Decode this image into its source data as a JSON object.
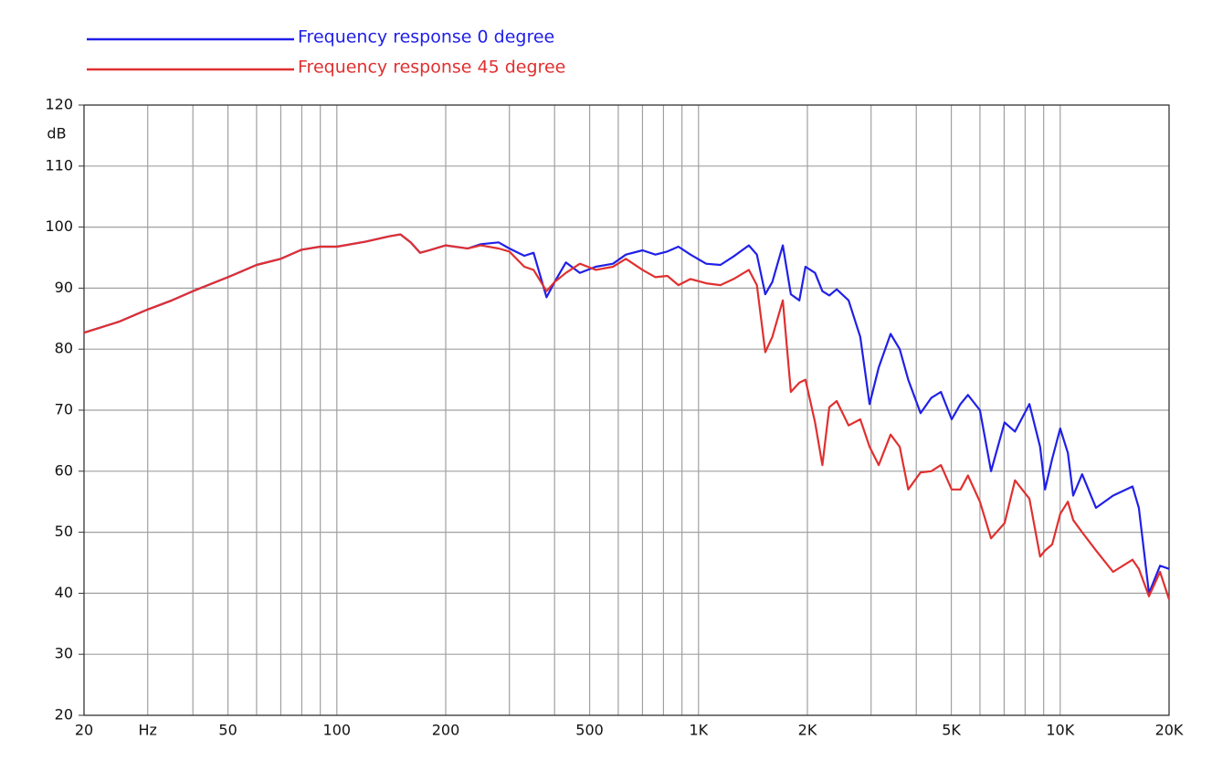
{
  "chart_data": {
    "type": "line",
    "y_label": "dB",
    "x_scale": "log",
    "grid": true,
    "xlim": [
      20,
      20000
    ],
    "ylim": [
      20,
      120
    ],
    "yticks": [
      20,
      30,
      40,
      50,
      60,
      70,
      80,
      90,
      100,
      110,
      120
    ],
    "xticks": [
      20,
      {
        "value": 30,
        "label": "Hz"
      },
      50,
      100,
      200,
      500,
      {
        "value": 1000,
        "label": "1K"
      },
      {
        "value": 2000,
        "label": "2K"
      },
      {
        "value": 5000,
        "label": "5K"
      },
      {
        "value": 10000,
        "label": "10K"
      },
      {
        "value": 20000,
        "label": "20K"
      }
    ],
    "xminor": [
      40,
      60,
      70,
      80,
      90,
      300,
      400,
      600,
      700,
      800,
      900,
      3000,
      4000,
      6000,
      7000,
      8000,
      9000
    ],
    "x": [
      20,
      25,
      30,
      35,
      40,
      50,
      60,
      70,
      80,
      90,
      100,
      120,
      140,
      150,
      160,
      170,
      180,
      200,
      230,
      250,
      280,
      300,
      330,
      350,
      380,
      400,
      430,
      470,
      520,
      580,
      630,
      700,
      760,
      820,
      880,
      950,
      1050,
      1150,
      1250,
      1378,
      1450,
      1530,
      1600,
      1710,
      1800,
      1900,
      1976,
      2100,
      2200,
      2300,
      2410,
      2600,
      2800,
      2972,
      3150,
      3396,
      3600,
      3800,
      4110,
      4400,
      4680,
      5012,
      5300,
      5560,
      6000,
      6440,
      7020,
      7500,
      8220,
      8800,
      9080,
      9500,
      10000,
      10500,
      10860,
      11500,
      12560,
      14000,
      15850,
      16500,
      17600,
      18880,
      20000
    ],
    "series": [
      {
        "name": "Frequency response 0 degree",
        "color": "#2020e8",
        "values": [
          82.7,
          84.5,
          86.5,
          88,
          89.5,
          91.8,
          93.8,
          94.8,
          96.3,
          96.8,
          96.8,
          97.6,
          98.5,
          98.8,
          97.5,
          95.8,
          96.2,
          97,
          96.5,
          97.2,
          97.5,
          96.5,
          95.3,
          95.8,
          88.5,
          91,
          94.2,
          92.5,
          93.5,
          94,
          95.5,
          96.2,
          95.5,
          96,
          96.8,
          95.5,
          94,
          93.8,
          95.2,
          97,
          95.5,
          89,
          91,
          97,
          89,
          88,
          93.5,
          92.5,
          89.5,
          88.8,
          89.8,
          88,
          82,
          71,
          77,
          82.5,
          80,
          75,
          69.5,
          72,
          73,
          68.5,
          71,
          72.5,
          70,
          60,
          68,
          66.5,
          71,
          64,
          57,
          62,
          67,
          63,
          56,
          59.5,
          54,
          56,
          57.5,
          54,
          40,
          44.5,
          44
        ]
      },
      {
        "name": "Frequency response 45 degree",
        "color": "#e03030",
        "values": [
          82.7,
          84.5,
          86.5,
          88,
          89.5,
          91.8,
          93.8,
          94.8,
          96.3,
          96.8,
          96.8,
          97.6,
          98.5,
          98.8,
          97.5,
          95.8,
          96.2,
          97,
          96.5,
          97,
          96.5,
          96,
          93.5,
          93,
          89.5,
          91,
          92.5,
          94,
          93,
          93.5,
          94.8,
          93,
          91.8,
          92,
          90.5,
          91.5,
          90.8,
          90.5,
          91.5,
          93,
          90.5,
          79.5,
          82,
          88,
          73,
          74.5,
          75,
          68,
          61,
          70.5,
          71.5,
          67.5,
          68.5,
          64,
          61,
          66,
          64,
          57,
          59.8,
          60,
          61,
          57,
          57,
          59.3,
          55,
          49,
          51.5,
          58.5,
          55.5,
          46,
          47,
          48,
          53,
          55,
          52,
          50,
          47,
          43.5,
          45.5,
          44,
          39.5,
          43.5,
          39
        ]
      }
    ]
  }
}
